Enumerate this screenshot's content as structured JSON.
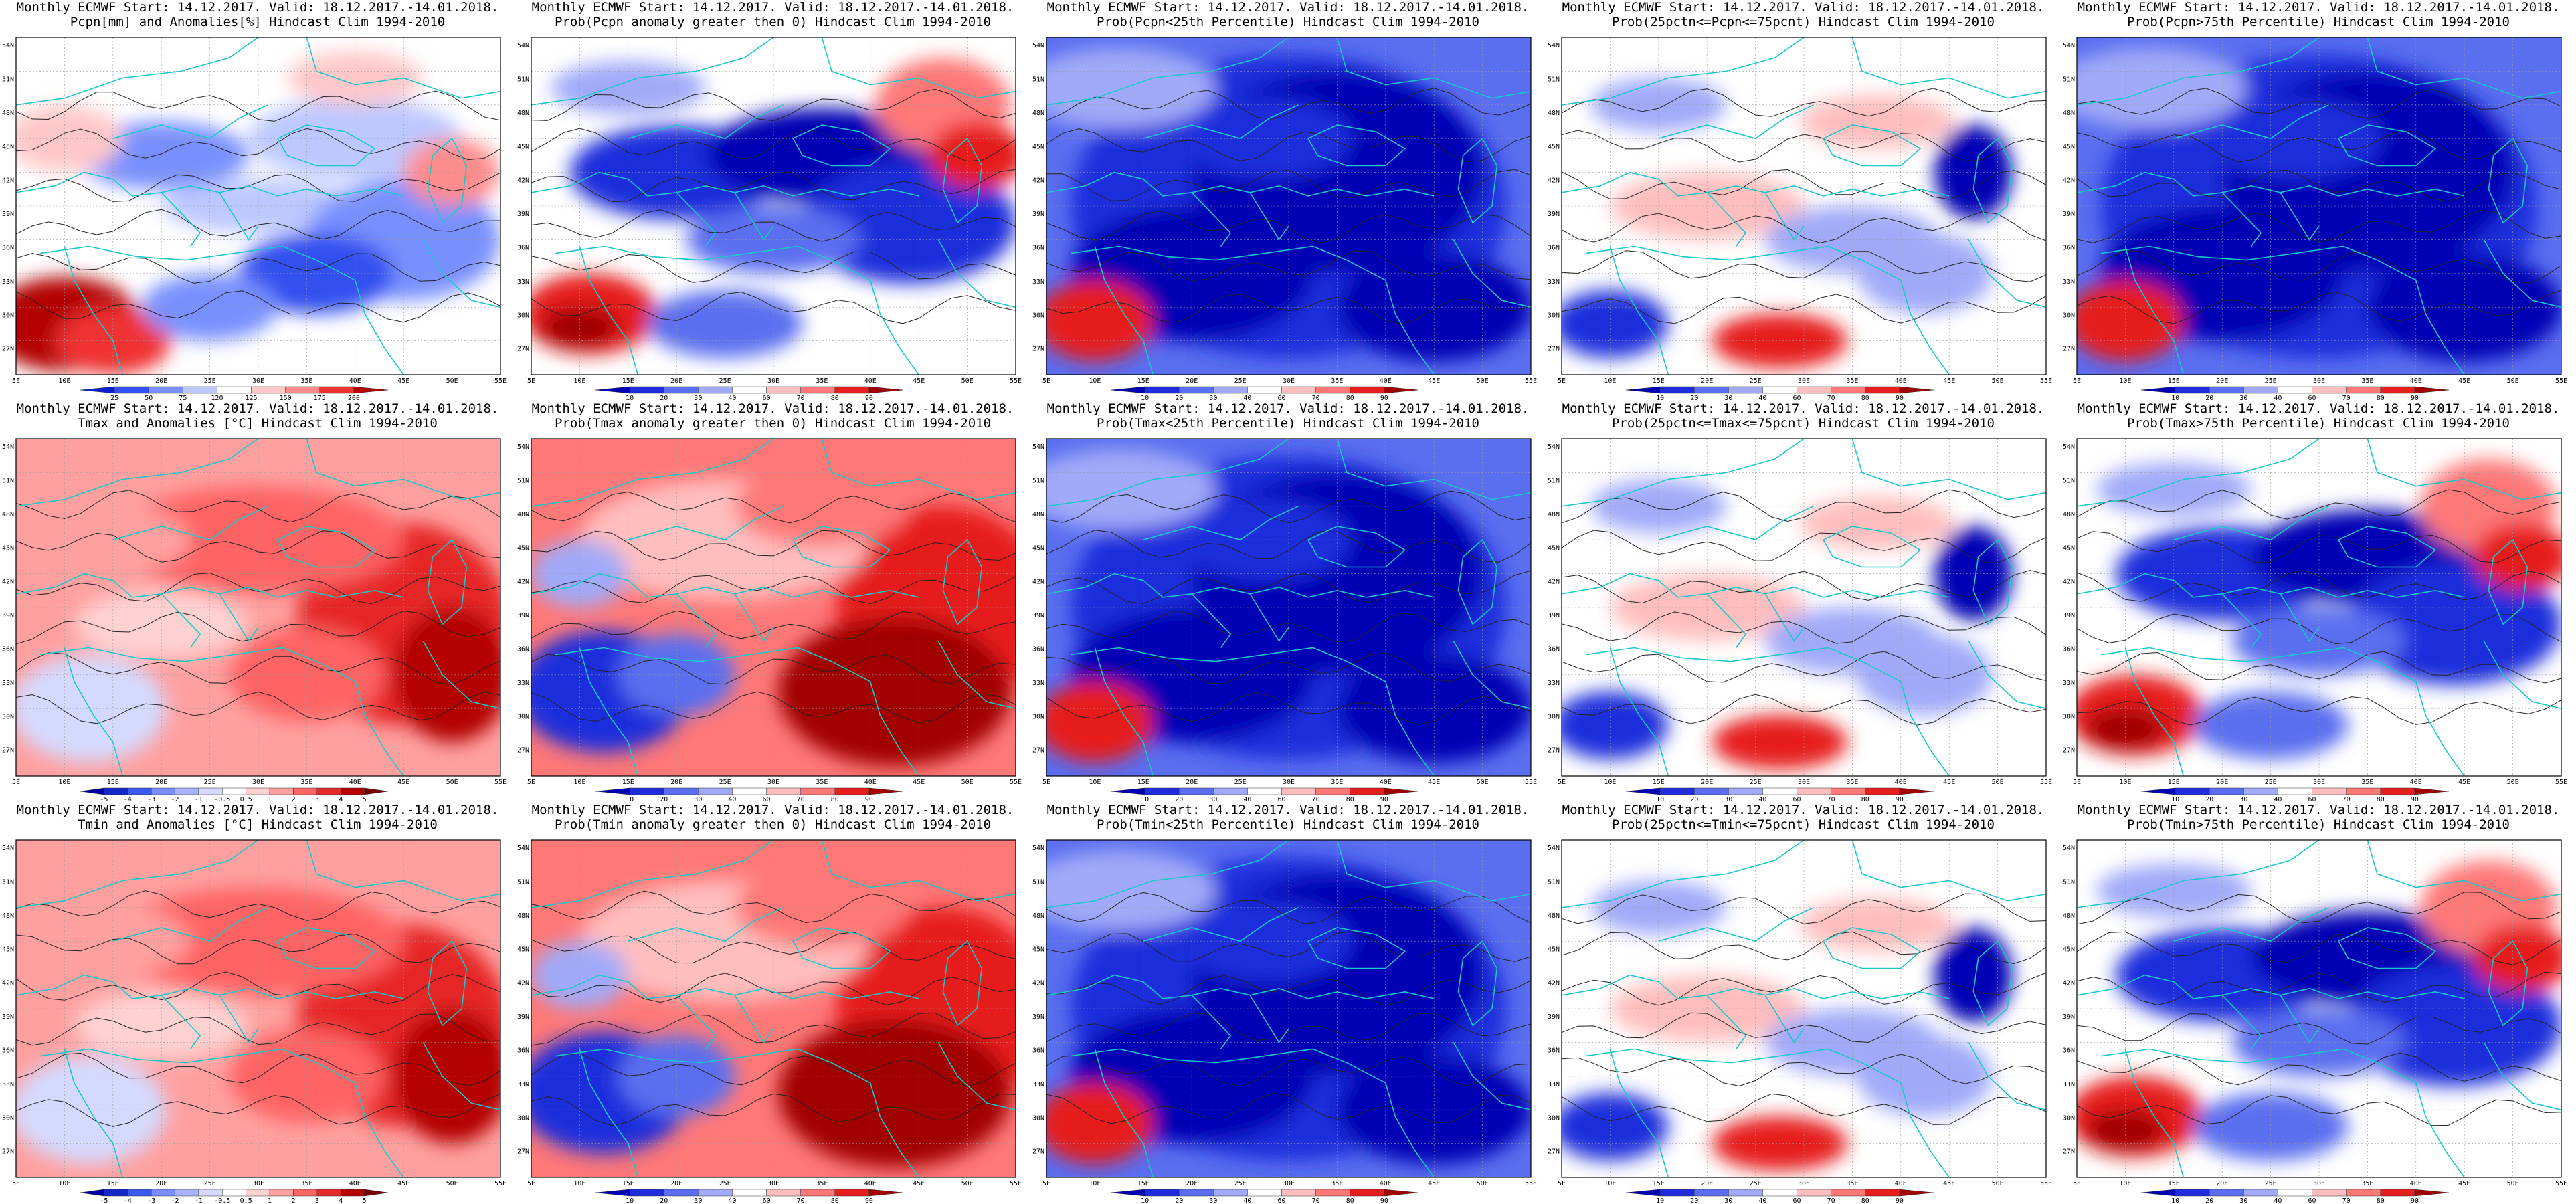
{
  "figure": {
    "lat_labels": [
      "54N",
      "51N",
      "48N",
      "45N",
      "42N",
      "39N",
      "36N",
      "33N",
      "30N",
      "27N"
    ],
    "lon_labels": [
      "5E",
      "10E",
      "15E",
      "20E",
      "25E",
      "30E",
      "35E",
      "40E",
      "45E",
      "50E",
      "55E"
    ],
    "panels": [
      {
        "title1": "Monthly ECMWF Start: 14.12.2017. Valid: 18.12.2017.-14.01.2018.",
        "title2": "Pcpn[mm] and Anomalies[%] Hindcast Clim 1994-2010",
        "scheme": "anomaly_pcpn",
        "colorbar": [
          "25",
          "50",
          "75",
          "120",
          "125",
          "150",
          "175",
          "200"
        ],
        "colors": [
          "#0a1ed2",
          "#3250f0",
          "#7890ff",
          "#bcc8ff",
          "#ffffff",
          "#ffc8c8",
          "#ff8c8c",
          "#f03232",
          "#b40000"
        ]
      },
      {
        "title1": "Monthly ECMWF Start: 14.12.2017. Valid: 18.12.2017.-14.01.2018.",
        "title2": "Prob(Pcpn anomaly greater then 0) Hindcast Clim 1994-2010",
        "scheme": "prob_mixed",
        "colorbar": [
          "10",
          "20",
          "30",
          "40",
          "60",
          "70",
          "80",
          "90"
        ],
        "colors": [
          "#0000b4",
          "#1e2ddc",
          "#5a6ef0",
          "#a0aaf8",
          "#ffffff",
          "#ffbebe",
          "#ff7878",
          "#e61e1e",
          "#a00000"
        ]
      },
      {
        "title1": "Monthly ECMWF Start: 14.12.2017. Valid: 18.12.2017.-14.01.2018.",
        "title2": "Prob(Pcpn<25th Percentile) Hindcast Clim 1994-2010",
        "scheme": "prob_blue",
        "colorbar": [
          "10",
          "20",
          "30",
          "40",
          "60",
          "70",
          "80",
          "90"
        ],
        "colors": [
          "#0000b4",
          "#1e2ddc",
          "#5a6ef0",
          "#a0aaf8",
          "#ffffff",
          "#ffbebe",
          "#ff7878",
          "#e61e1e",
          "#a00000"
        ]
      },
      {
        "title1": "Monthly ECMWF Start: 14.12.2017. Valid: 18.12.2017.-14.01.2018.",
        "title2": "Prob(25pctn<=Pcpn<=75pcnt) Hindcast Clim 1994-2010",
        "scheme": "prob_light",
        "colorbar": [
          "10",
          "20",
          "30",
          "40",
          "60",
          "70",
          "80",
          "90"
        ],
        "colors": [
          "#0000b4",
          "#1e2ddc",
          "#5a6ef0",
          "#a0aaf8",
          "#ffffff",
          "#ffbebe",
          "#ff7878",
          "#e61e1e",
          "#a00000"
        ]
      },
      {
        "title1": "Monthly ECMWF Start: 14.12.2017. Valid: 18.12.2017.-14.01.2018.",
        "title2": "Prob(Pcpn>75th Percentile) Hindcast Clim 1994-2010",
        "scheme": "prob_blue",
        "colorbar": [
          "10",
          "20",
          "30",
          "40",
          "60",
          "70",
          "80",
          "90"
        ],
        "colors": [
          "#0000b4",
          "#1e2ddc",
          "#5a6ef0",
          "#a0aaf8",
          "#ffffff",
          "#ffbebe",
          "#ff7878",
          "#e61e1e",
          "#a00000"
        ]
      },
      {
        "title1": "Monthly ECMWF Start: 14.12.2017. Valid: 18.12.2017.-14.01.2018.",
        "title2": "Tmax and Anomalies [°C] Hindcast Clim 1994-2010",
        "scheme": "anomaly_red",
        "colorbar": [
          "-5",
          "-4",
          "-3",
          "-2",
          "-1",
          "-0.5",
          "0.5",
          "1",
          "2",
          "3",
          "4",
          "5"
        ],
        "colors": [
          "#0000a0",
          "#1428c8",
          "#3c5af0",
          "#7890ff",
          "#a8b4ff",
          "#d4daff",
          "#ffffff",
          "#ffd2d2",
          "#ffa0a0",
          "#ff6464",
          "#e62828",
          "#b40000",
          "#780000"
        ]
      },
      {
        "title1": "Monthly ECMWF Start: 14.12.2017. Valid: 18.12.2017.-14.01.2018.",
        "title2": "Prob(Tmax anomaly greater then 0) Hindcast Clim 1994-2010",
        "scheme": "prob_red",
        "colorbar": [
          "10",
          "20",
          "30",
          "40",
          "60",
          "70",
          "80",
          "90"
        ],
        "colors": [
          "#0000b4",
          "#1e2ddc",
          "#5a6ef0",
          "#a0aaf8",
          "#ffffff",
          "#ffbebe",
          "#ff7878",
          "#e61e1e",
          "#a00000"
        ]
      },
      {
        "title1": "Monthly ECMWF Start: 14.12.2017. Valid: 18.12.2017.-14.01.2018.",
        "title2": "Prob(Tmax<25th Percentile) Hindcast Clim 1994-2010",
        "scheme": "prob_blue",
        "colorbar": [
          "10",
          "20",
          "30",
          "40",
          "60",
          "70",
          "80",
          "90"
        ],
        "colors": [
          "#0000b4",
          "#1e2ddc",
          "#5a6ef0",
          "#a0aaf8",
          "#ffffff",
          "#ffbebe",
          "#ff7878",
          "#e61e1e",
          "#a00000"
        ]
      },
      {
        "title1": "Monthly ECMWF Start: 14.12.2017. Valid: 18.12.2017.-14.01.2018.",
        "title2": "Prob(25pctn<=Tmax<=75pcnt) Hindcast Clim 1994-2010",
        "scheme": "prob_light",
        "colorbar": [
          "10",
          "20",
          "30",
          "40",
          "60",
          "70",
          "80",
          "90"
        ],
        "colors": [
          "#0000b4",
          "#1e2ddc",
          "#5a6ef0",
          "#a0aaf8",
          "#ffffff",
          "#ffbebe",
          "#ff7878",
          "#e61e1e",
          "#a00000"
        ]
      },
      {
        "title1": "Monthly ECMWF Start: 14.12.2017. Valid: 18.12.2017.-14.01.2018.",
        "title2": "Prob(Tmax>75th Percentile) Hindcast Clim 1994-2010",
        "scheme": "prob_mixed",
        "colorbar": [
          "10",
          "20",
          "30",
          "40",
          "60",
          "70",
          "80",
          "90"
        ],
        "colors": [
          "#0000b4",
          "#1e2ddc",
          "#5a6ef0",
          "#a0aaf8",
          "#ffffff",
          "#ffbebe",
          "#ff7878",
          "#e61e1e",
          "#a00000"
        ]
      },
      {
        "title1": "Monthly ECMWF Start: 14.12.2017. Valid: 18.12.2017.-14.01.2018.",
        "title2": "Tmin and Anomalies [°C] Hindcast Clim 1994-2010",
        "scheme": "anomaly_red",
        "colorbar": [
          "-5",
          "-4",
          "-3",
          "-2",
          "-1",
          "-0.5",
          "0.5",
          "1",
          "2",
          "3",
          "4",
          "5"
        ],
        "colors": [
          "#0000a0",
          "#1428c8",
          "#3c5af0",
          "#7890ff",
          "#a8b4ff",
          "#d4daff",
          "#ffffff",
          "#ffd2d2",
          "#ffa0a0",
          "#ff6464",
          "#e62828",
          "#b40000",
          "#780000"
        ]
      },
      {
        "title1": "Monthly ECMWF Start: 14.12.2017. Valid: 18.12.2017.-14.01.2018.",
        "title2": "Prob(Tmin anomaly greater then 0) Hindcast Clim 1994-2010",
        "scheme": "prob_red",
        "colorbar": [
          "10",
          "20",
          "30",
          "40",
          "60",
          "70",
          "80",
          "90"
        ],
        "colors": [
          "#0000b4",
          "#1e2ddc",
          "#5a6ef0",
          "#a0aaf8",
          "#ffffff",
          "#ffbebe",
          "#ff7878",
          "#e61e1e",
          "#a00000"
        ]
      },
      {
        "title1": "Monthly ECMWF Start: 14.12.2017. Valid: 18.12.2017.-14.01.2018.",
        "title2": "Prob(Tmin<25th Percentile) Hindcast Clim 1994-2010",
        "scheme": "prob_blue",
        "colorbar": [
          "10",
          "20",
          "30",
          "40",
          "60",
          "70",
          "80",
          "90"
        ],
        "colors": [
          "#0000b4",
          "#1e2ddc",
          "#5a6ef0",
          "#a0aaf8",
          "#ffffff",
          "#ffbebe",
          "#ff7878",
          "#e61e1e",
          "#a00000"
        ]
      },
      {
        "title1": "Monthly ECMWF Start: 14.12.2017. Valid: 18.12.2017.-14.01.2018.",
        "title2": "Prob(25pctn<=Tmin<=75pcnt) Hindcast Clim 1994-2010",
        "scheme": "prob_light",
        "colorbar": [
          "10",
          "20",
          "30",
          "40",
          "60",
          "70",
          "80",
          "90"
        ],
        "colors": [
          "#0000b4",
          "#1e2ddc",
          "#5a6ef0",
          "#a0aaf8",
          "#ffffff",
          "#ffbebe",
          "#ff7878",
          "#e61e1e",
          "#a00000"
        ]
      },
      {
        "title1": "Monthly ECMWF Start: 14.12.2017. Valid: 18.12.2017.-14.01.2018.",
        "title2": "Prob(Tmin>75th Percentile) Hindcast Clim 1994-2010",
        "scheme": "prob_mixed",
        "colorbar": [
          "10",
          "20",
          "30",
          "40",
          "60",
          "70",
          "80",
          "90"
        ],
        "colors": [
          "#0000b4",
          "#1e2ddc",
          "#5a6ef0",
          "#a0aaf8",
          "#ffffff",
          "#ffbebe",
          "#ff7878",
          "#e61e1e",
          "#a00000"
        ]
      }
    ]
  }
}
